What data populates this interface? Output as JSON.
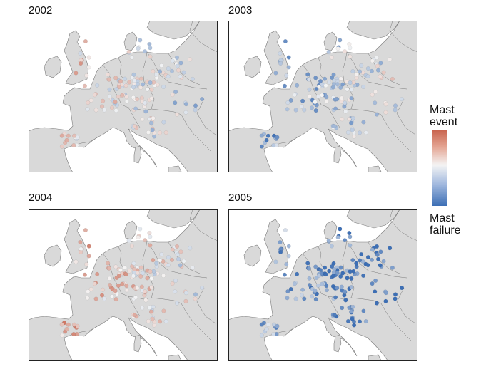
{
  "panels": [
    {
      "year": "2002",
      "bias": 0.05
    },
    {
      "year": "2003",
      "bias": -0.35
    },
    {
      "year": "2004",
      "bias": 0.25
    },
    {
      "year": "2005",
      "bias": -0.75
    }
  ],
  "legend": {
    "top_label_line1": "Mast",
    "top_label_line2": "event",
    "bottom_label_line1": "Mast",
    "bottom_label_line2": "failure",
    "colors": {
      "event": "#c9654f",
      "neutral": "#f4f4f4",
      "failure": "#3d6fb5"
    }
  },
  "map_colors": {
    "land": "#d9d9d9",
    "sea": "#ffffff",
    "border": "#7a7a7a"
  }
}
